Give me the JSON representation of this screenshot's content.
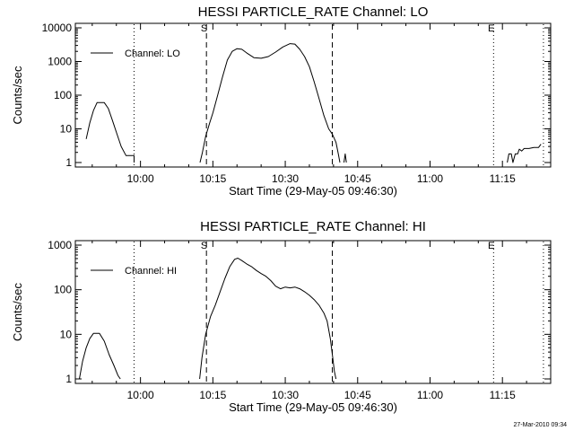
{
  "chart_data": [
    {
      "type": "line",
      "title": "HESSI PARTICLE_RATE Channel: LO",
      "xlabel": "Start Time (29-May-05 09:46:30)",
      "ylabel": "Counts/sec",
      "yscale": "log",
      "ylim": [
        1,
        10000
      ],
      "xlim": [
        "09:46:30",
        "11:25:00"
      ],
      "x_ticks": [
        "10:00",
        "10:15",
        "10:30",
        "10:45",
        "11:00",
        "11:15"
      ],
      "y_ticks": [
        "1",
        "10",
        "100",
        "1000",
        "10000"
      ],
      "legend": {
        "position": "top-left",
        "entries": [
          "Channel: LO"
        ]
      },
      "grid": false,
      "markers": [
        {
          "label": "S",
          "time": "10:13:40",
          "style": "dashed"
        },
        {
          "label": "",
          "time": "10:39:45",
          "style": "dashed"
        },
        {
          "label": "",
          "time": "09:58:40",
          "style": "dotted"
        },
        {
          "label": "E",
          "time": "11:13:10",
          "style": "dotted"
        },
        {
          "label": "",
          "time": "11:23:30",
          "style": "dotted"
        }
      ],
      "series": [
        {
          "name": "Channel: LO",
          "segments": [
            [
              [
                "09:48:45",
                5
              ],
              [
                "09:49:30",
                15
              ],
              [
                "09:50:15",
                35
              ],
              [
                "09:51:00",
                60
              ],
              [
                "09:52:30",
                60
              ],
              [
                "09:53:20",
                40
              ],
              [
                "09:54:10",
                18
              ],
              [
                "09:55:00",
                8
              ],
              [
                "09:56:00",
                3
              ],
              [
                "09:57:00",
                1.6
              ],
              [
                "09:58:40",
                1.6
              ],
              [
                "09:58:40",
                1
              ]
            ],
            [
              [
                "10:12:20",
                1
              ],
              [
                "10:12:50",
                2
              ],
              [
                "10:13:30",
                6
              ],
              [
                "10:14:20",
                15
              ],
              [
                "10:15:00",
                30
              ],
              [
                "10:16:00",
                100
              ],
              [
                "10:17:00",
                350
              ],
              [
                "10:18:00",
                1100
              ],
              [
                "10:19:00",
                2000
              ],
              [
                "10:20:00",
                2400
              ],
              [
                "10:21:00",
                2300
              ],
              [
                "10:22:00",
                1800
              ],
              [
                "10:23:30",
                1300
              ],
              [
                "10:25:00",
                1250
              ],
              [
                "10:26:30",
                1400
              ],
              [
                "10:28:00",
                1900
              ],
              [
                "10:29:30",
                2700
              ],
              [
                "10:31:00",
                3400
              ],
              [
                "10:32:00",
                3300
              ],
              [
                "10:33:00",
                2300
              ],
              [
                "10:34:00",
                1400
              ],
              [
                "10:35:00",
                700
              ],
              [
                "10:36:00",
                250
              ],
              [
                "10:37:00",
                80
              ],
              [
                "10:38:00",
                25
              ],
              [
                "10:39:00",
                10
              ],
              [
                "10:39:45",
                7
              ],
              [
                "10:40:30",
                4
              ],
              [
                "10:41:00",
                1.8
              ],
              [
                "10:41:20",
                1
              ]
            ],
            [
              [
                "10:42:10",
                1
              ],
              [
                "10:42:25",
                1.8
              ],
              [
                "10:42:40",
                1
              ]
            ],
            [
              [
                "11:16:00",
                1
              ],
              [
                "11:16:20",
                1.8
              ],
              [
                "11:16:50",
                1.8
              ],
              [
                "11:17:10",
                1
              ],
              [
                "11:17:40",
                1.8
              ],
              [
                "11:18:10",
                1.8
              ],
              [
                "11:18:30",
                2.5
              ],
              [
                "11:19:00",
                2.2
              ],
              [
                "11:19:30",
                2.6
              ],
              [
                "11:20:30",
                2.6
              ],
              [
                "11:21:30",
                2.8
              ],
              [
                "11:22:30",
                2.8
              ],
              [
                "11:23:00",
                3.5
              ]
            ]
          ]
        }
      ]
    },
    {
      "type": "line",
      "title": "HESSI PARTICLE_RATE Channel: HI",
      "xlabel": "Start Time (29-May-05 09:46:30)",
      "ylabel": "Counts/sec",
      "yscale": "log",
      "ylim": [
        1,
        1000
      ],
      "xlim": [
        "09:46:30",
        "11:25:00"
      ],
      "x_ticks": [
        "10:00",
        "10:15",
        "10:30",
        "10:45",
        "11:00",
        "11:15"
      ],
      "y_ticks": [
        "1",
        "10",
        "100",
        "1000"
      ],
      "legend": {
        "position": "top-left",
        "entries": [
          "Channel: HI"
        ]
      },
      "grid": false,
      "markers": [
        {
          "label": "S",
          "time": "10:13:40",
          "style": "dashed"
        },
        {
          "label": "",
          "time": "10:39:45",
          "style": "dashed"
        },
        {
          "label": "",
          "time": "09:58:40",
          "style": "dotted"
        },
        {
          "label": "E",
          "time": "11:13:10",
          "style": "dotted"
        },
        {
          "label": "",
          "time": "11:23:30",
          "style": "dotted"
        }
      ],
      "series": [
        {
          "name": "Channel: HI",
          "segments": [
            [
              [
                "09:47:20",
                1
              ],
              [
                "09:48:00",
                2.5
              ],
              [
                "09:48:45",
                5
              ],
              [
                "09:49:30",
                8
              ],
              [
                "09:50:15",
                10.5
              ],
              [
                "09:51:30",
                10.5
              ],
              [
                "09:52:30",
                7
              ],
              [
                "09:53:30",
                3.5
              ],
              [
                "09:54:30",
                2
              ],
              [
                "09:55:20",
                1.2
              ],
              [
                "09:55:50",
                1
              ]
            ],
            [
              [
                "10:12:15",
                1
              ],
              [
                "10:12:45",
                3
              ],
              [
                "10:13:30",
                10
              ],
              [
                "10:14:30",
                25
              ],
              [
                "10:15:30",
                45
              ],
              [
                "10:16:30",
                90
              ],
              [
                "10:17:30",
                180
              ],
              [
                "10:18:30",
                330
              ],
              [
                "10:19:30",
                480
              ],
              [
                "10:20:10",
                510
              ],
              [
                "10:21:00",
                450
              ],
              [
                "10:22:00",
                380
              ],
              [
                "10:23:00",
                330
              ],
              [
                "10:24:00",
                270
              ],
              [
                "10:25:00",
                230
              ],
              [
                "10:26:00",
                200
              ],
              [
                "10:27:00",
                160
              ],
              [
                "10:28:00",
                120
              ],
              [
                "10:29:00",
                105
              ],
              [
                "10:30:00",
                115
              ],
              [
                "10:31:00",
                110
              ],
              [
                "10:32:00",
                115
              ],
              [
                "10:33:00",
                105
              ],
              [
                "10:34:00",
                90
              ],
              [
                "10:35:00",
                75
              ],
              [
                "10:36:00",
                60
              ],
              [
                "10:37:00",
                45
              ],
              [
                "10:38:00",
                30
              ],
              [
                "10:38:40",
                20
              ],
              [
                "10:39:20",
                8
              ],
              [
                "10:39:50",
                3
              ],
              [
                "10:40:10",
                1.5
              ],
              [
                "10:40:30",
                1
              ]
            ]
          ]
        }
      ]
    }
  ],
  "timestamp": "27-Mar-2010 09:34"
}
